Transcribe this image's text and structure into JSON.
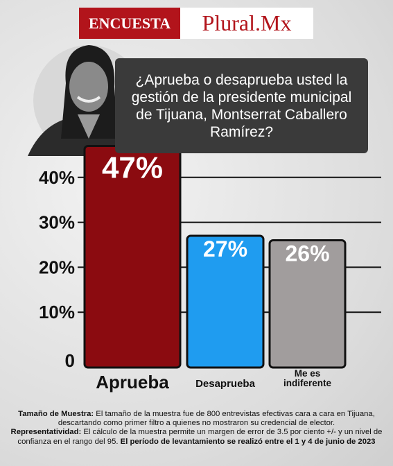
{
  "header": {
    "tag": "ENCUESTA",
    "brand": "Plural.Mx"
  },
  "chart_data": {
    "type": "bar",
    "title": "¿Aprueba o desaprueba usted la gestión de la presidente municipal de Tijuana, Montserrat Caballero Ramírez?",
    "categories": [
      "Aprueba",
      "Desaprueba",
      "Me es indiferente"
    ],
    "values": [
      47,
      27,
      26
    ],
    "value_labels": [
      "47%",
      "27%",
      "26%"
    ],
    "colors": [
      "#8b0b10",
      "#1f9cf0",
      "#a19d9d"
    ],
    "ylim": [
      0,
      50
    ],
    "yticks": [
      0,
      {
        "value": 10,
        "label": "10%"
      },
      {
        "value": 20,
        "label": "20%"
      },
      {
        "value": 30,
        "label": "30%"
      },
      {
        "value": 40,
        "label": "40%"
      }
    ],
    "grid": true
  },
  "footnote": [
    {
      "text": "Tamaño de Muestra:",
      "bold": true
    },
    {
      "text": " El tamaño de la muestra fue de 800 entrevistas efectivas cara a cara en Tijuana, descartando como primer filtro a quienes no mostraron su credencial de elector.",
      "bold": false
    },
    {
      "text": "Representatividad:",
      "bold": true
    },
    {
      "text": " El cálculo de la muestra permite un margen de error de 3.5 por ciento +/- y un nivel de confianza en el rango del 95. ",
      "bold": false
    },
    {
      "text": "El período de levantamiento se realizó entre el 1 y 4 de junio de 2023",
      "bold": true
    }
  ]
}
